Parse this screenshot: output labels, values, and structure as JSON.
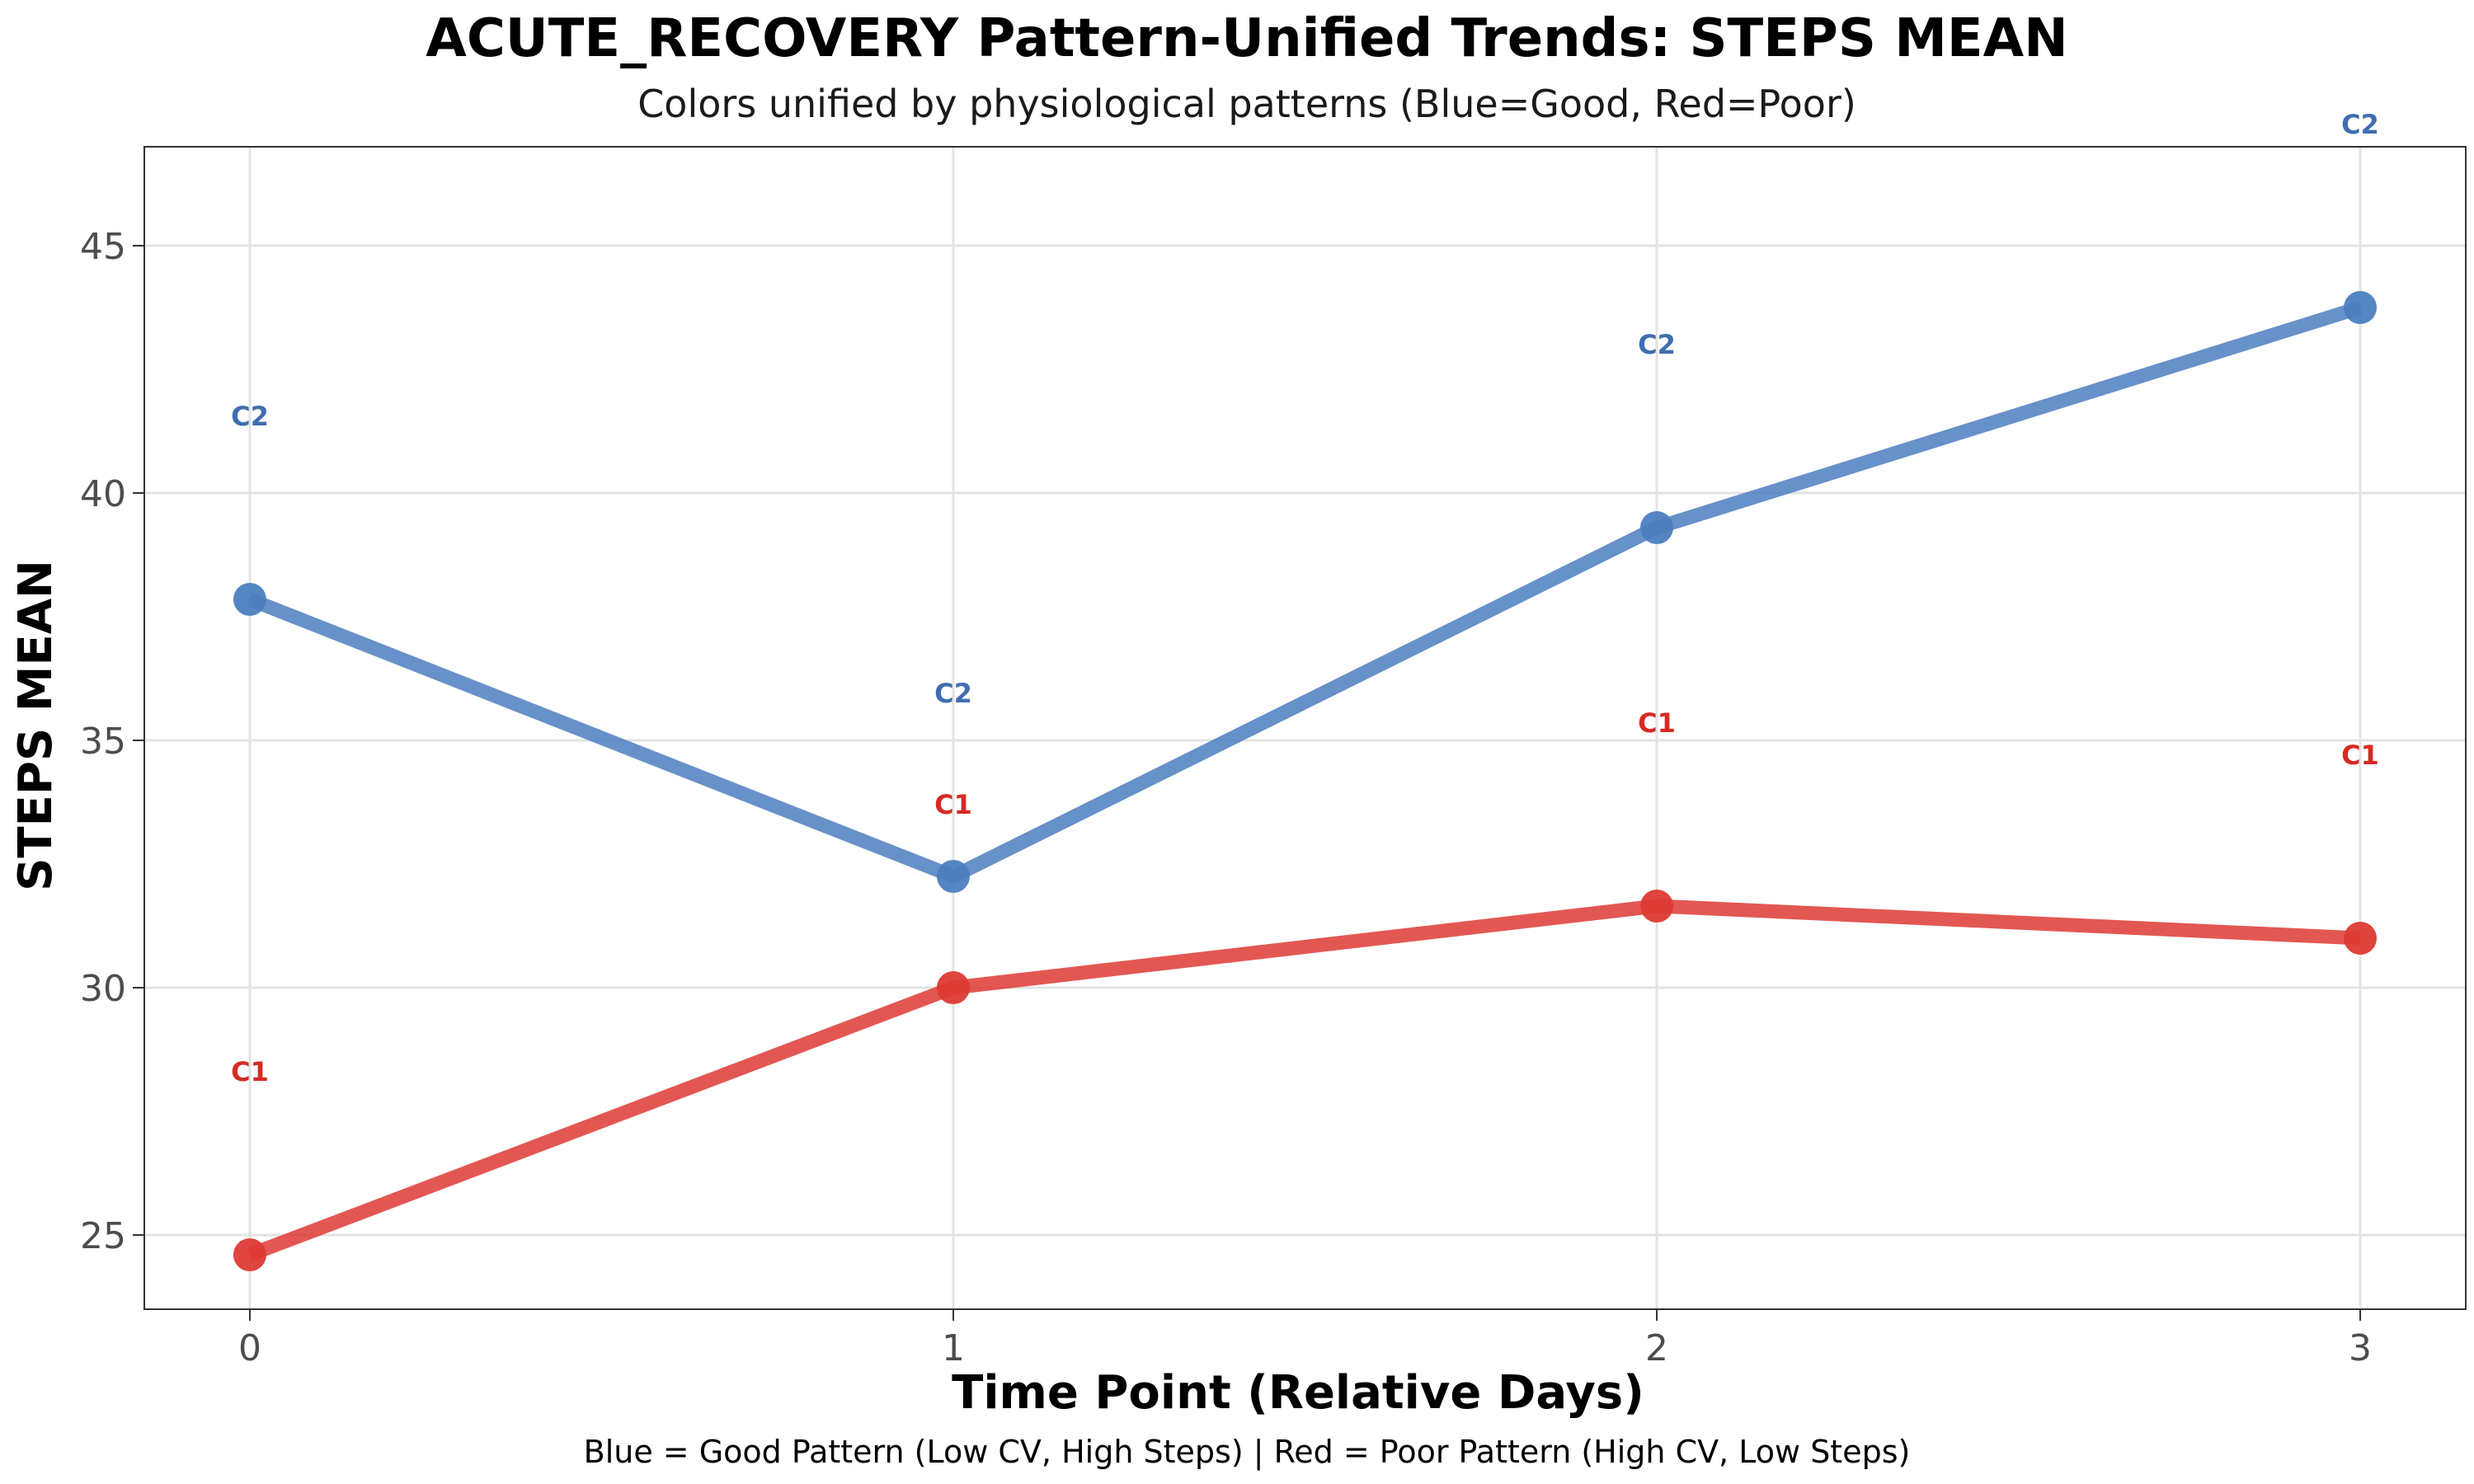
{
  "chart_data": {
    "type": "line",
    "title": "ACUTE_RECOVERY Pattern-Unified Trends: STEPS MEAN",
    "subtitle": "Colors unified by physiological patterns (Blue=Good, Red=Poor)",
    "xlabel": "Time Point (Relative Days)",
    "ylabel": "STEPS MEAN",
    "caption": "Blue = Good Pattern (Low CV, High Steps) | Red = Poor Pattern (High CV, Low Steps)",
    "x": [
      0,
      1,
      2,
      3
    ],
    "xlim": [
      -0.15,
      3.15
    ],
    "ylim": [
      23.5,
      47.0
    ],
    "x_ticks": [
      0,
      1,
      2,
      3
    ],
    "x_tick_labels": [
      "0",
      "1",
      "2",
      "3"
    ],
    "y_ticks": [
      25,
      30,
      35,
      40,
      45
    ],
    "y_tick_labels": [
      "25",
      "30",
      "35",
      "40",
      "45"
    ],
    "grid": true,
    "series": [
      {
        "name": "C2",
        "color": "#4C7EBF",
        "label_color": "#3F6EAF",
        "values": [
          37.85,
          32.25,
          39.3,
          43.75
        ]
      },
      {
        "name": "C1",
        "color": "#DE3A34",
        "label_color": "#D62A24",
        "values": [
          24.6,
          30.0,
          31.65,
          31.0
        ]
      }
    ]
  }
}
